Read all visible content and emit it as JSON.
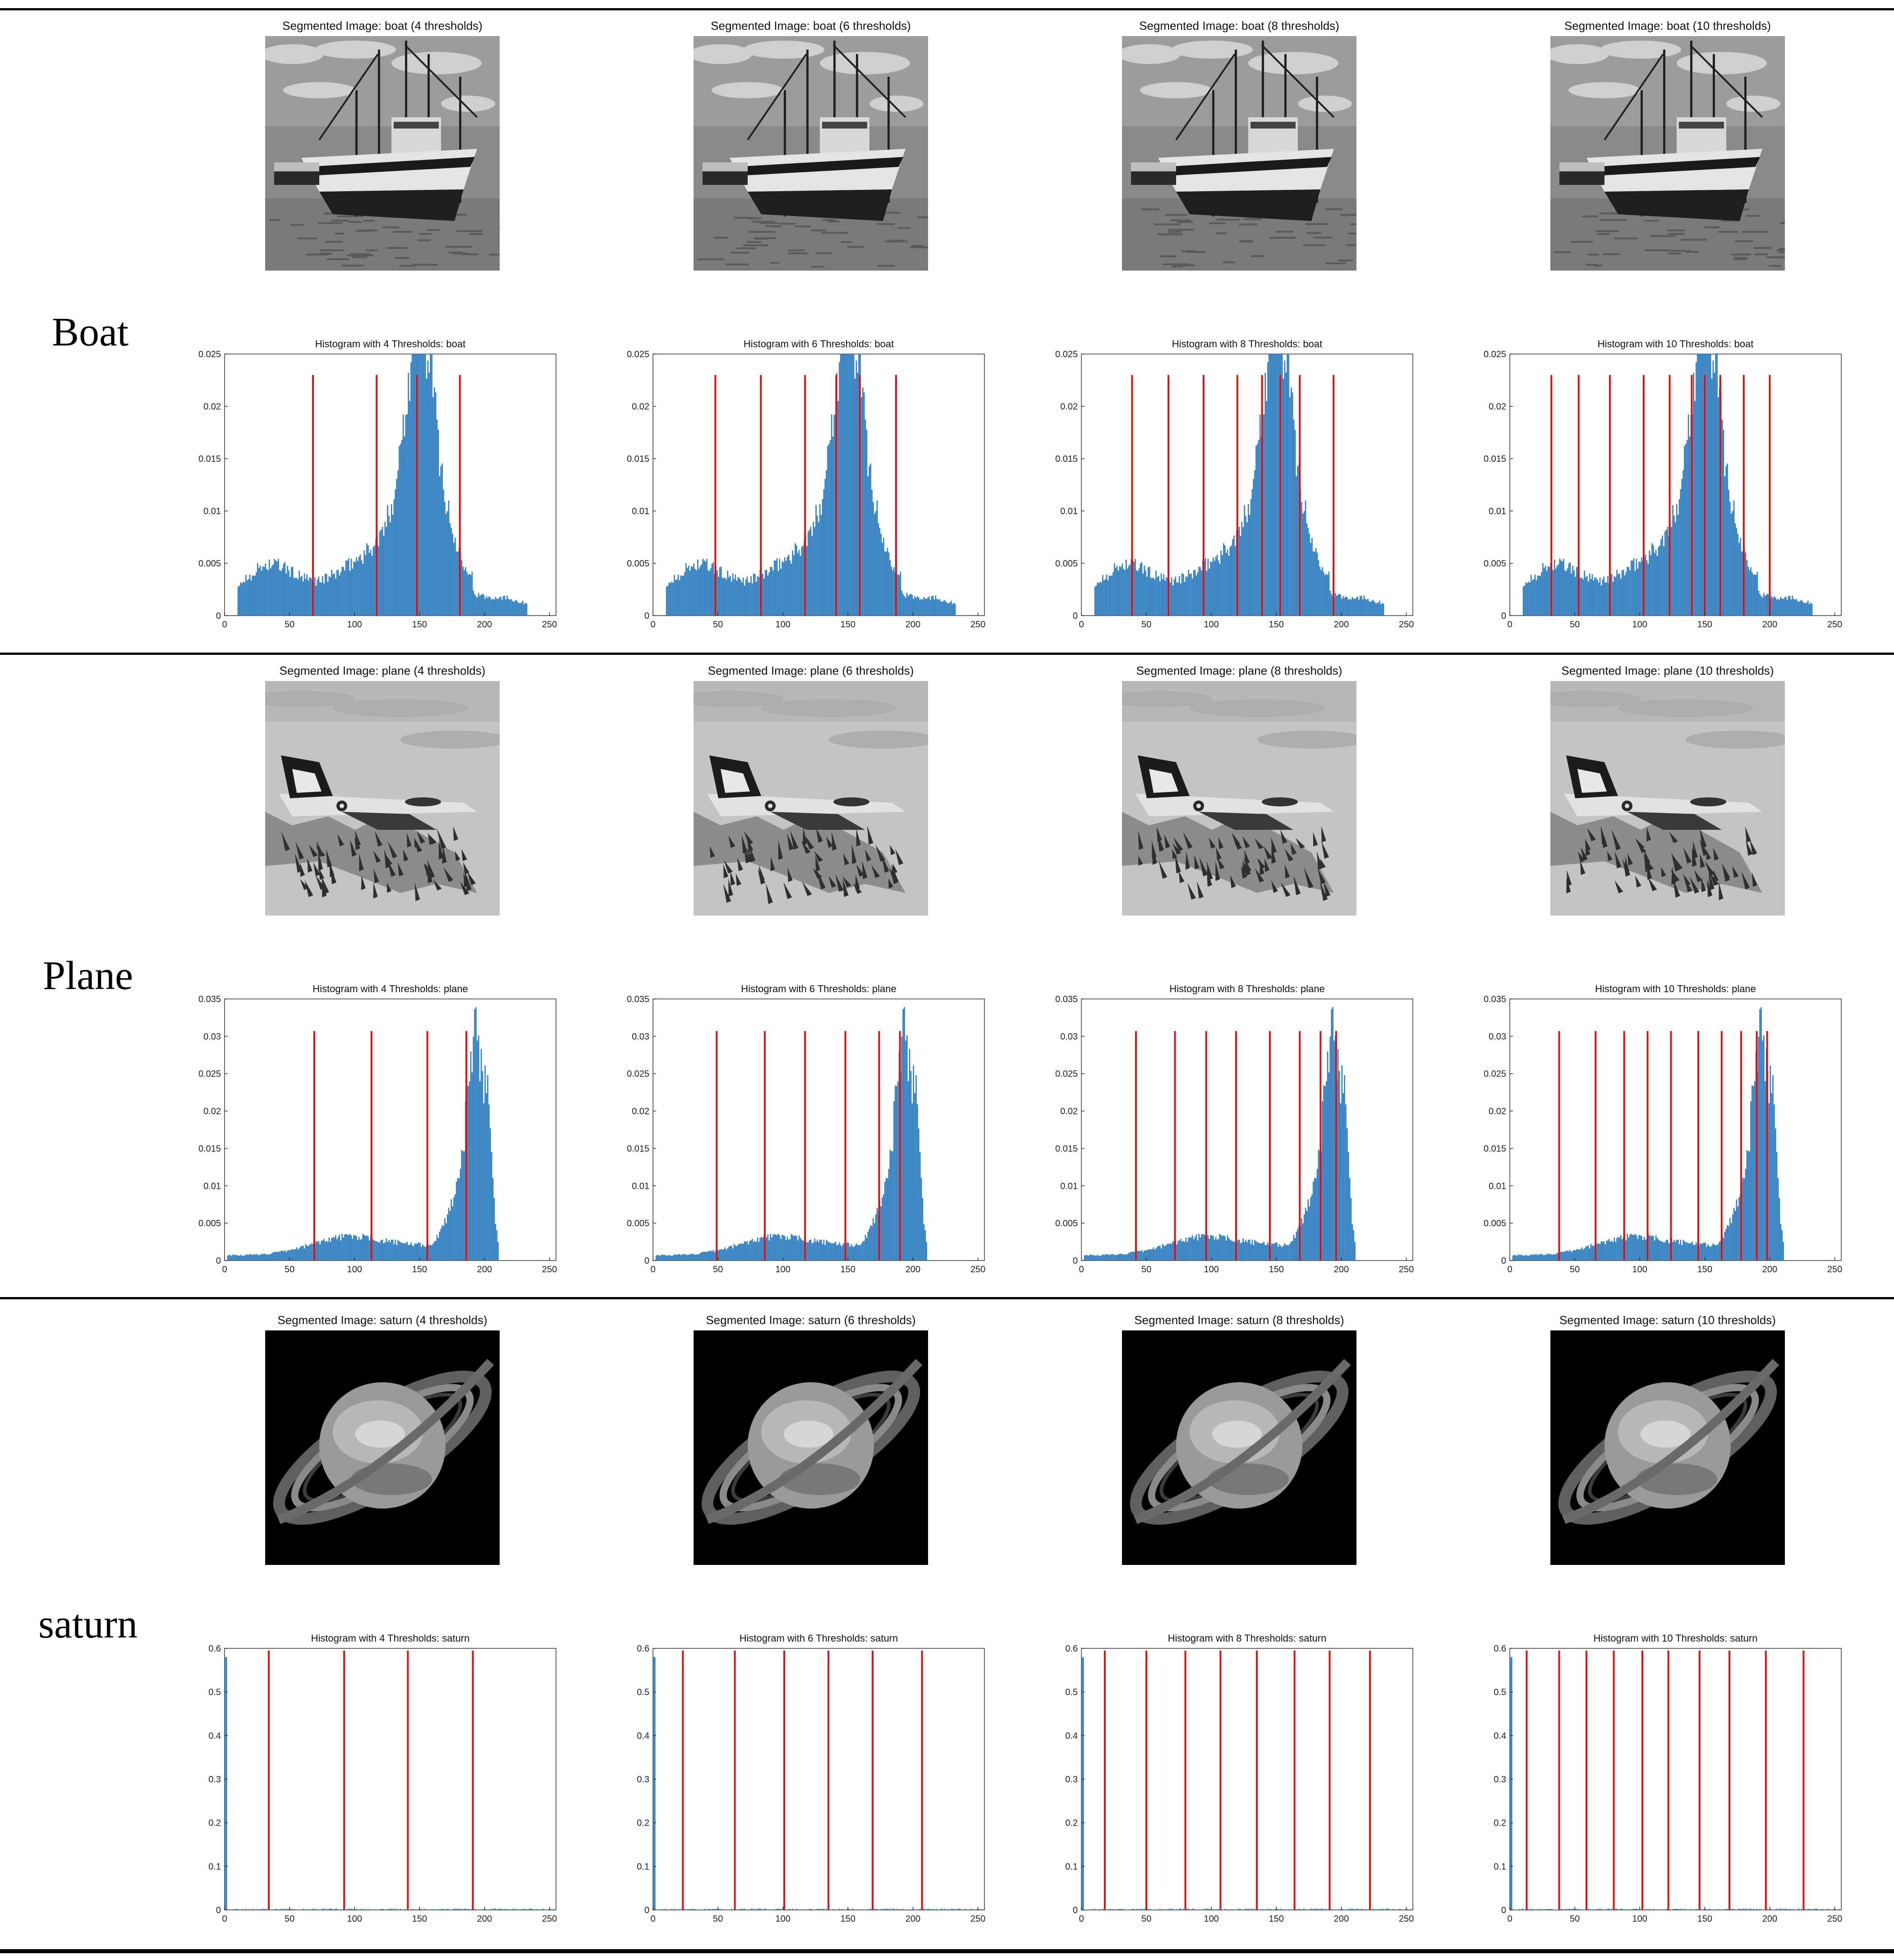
{
  "rows": [
    {
      "label": "Boat",
      "image": "boat",
      "segmented_titles": [
        "Segmented Image: boat (4 thresholds)",
        "Segmented Image: boat (6 thresholds)",
        "Segmented Image: boat (8 thresholds)",
        "Segmented Image: boat (10 thresholds)"
      ]
    },
    {
      "label": "Plane",
      "image": "plane",
      "segmented_titles": [
        "Segmented Image: plane (4 thresholds)",
        "Segmented Image: plane (6 thresholds)",
        "Segmented Image: plane (8 thresholds)",
        "Segmented Image: plane (10 thresholds)"
      ]
    },
    {
      "label": "saturn",
      "image": "saturn",
      "segmented_titles": [
        "Segmented Image: saturn (4 thresholds)",
        "Segmented Image: saturn (6 thresholds)",
        "Segmented Image: saturn (8 thresholds)",
        "Segmented Image: saturn (10 thresholds)"
      ]
    }
  ],
  "colors": {
    "histogram_bars": "#2b7bbf",
    "threshold_lines": "#e01010",
    "axes": "#333333"
  },
  "chart_data": [
    {
      "type": "bar",
      "title": "Histogram with 4 Thresholds: boat",
      "xlim": [
        0,
        255
      ],
      "ylim": [
        0,
        0.025
      ],
      "xticks": [
        0,
        50,
        100,
        150,
        200,
        250
      ],
      "yticks": [
        0,
        0.005,
        0.01,
        0.015,
        0.02,
        0.025
      ],
      "ytick_labels": [
        "0",
        "0.005",
        "0.01",
        "0.015",
        "0.02",
        "0.025"
      ],
      "distribution": "boat",
      "thresholds": [
        68,
        117,
        148,
        181
      ],
      "threshold_height": 0.023
    },
    {
      "type": "bar",
      "title": "Histogram with 6 Thresholds: boat",
      "xlim": [
        0,
        255
      ],
      "ylim": [
        0,
        0.025
      ],
      "xticks": [
        0,
        50,
        100,
        150,
        200,
        250
      ],
      "yticks": [
        0,
        0.005,
        0.01,
        0.015,
        0.02,
        0.025
      ],
      "ytick_labels": [
        "0",
        "0.005",
        "0.01",
        "0.015",
        "0.02",
        "0.025"
      ],
      "distribution": "boat",
      "thresholds": [
        48,
        83,
        117,
        141,
        159,
        187
      ],
      "threshold_height": 0.023
    },
    {
      "type": "bar",
      "title": "Histogram with 8 Thresholds: boat",
      "xlim": [
        0,
        255
      ],
      "ylim": [
        0,
        0.025
      ],
      "xticks": [
        0,
        50,
        100,
        150,
        200,
        250
      ],
      "yticks": [
        0,
        0.005,
        0.01,
        0.015,
        0.02,
        0.025
      ],
      "ytick_labels": [
        "0",
        "0.005",
        "0.01",
        "0.015",
        "0.02",
        "0.025"
      ],
      "distribution": "boat",
      "thresholds": [
        39,
        67,
        94,
        120,
        139,
        153,
        168,
        194
      ],
      "threshold_height": 0.023
    },
    {
      "type": "bar",
      "title": "Histogram with 10 Thresholds: boat",
      "xlim": [
        0,
        255
      ],
      "ylim": [
        0,
        0.025
      ],
      "xticks": [
        0,
        50,
        100,
        150,
        200,
        250
      ],
      "yticks": [
        0,
        0.005,
        0.01,
        0.015,
        0.02,
        0.025
      ],
      "ytick_labels": [
        "0",
        "0.005",
        "0.01",
        "0.015",
        "0.02",
        "0.025"
      ],
      "distribution": "boat",
      "thresholds": [
        32,
        53,
        77,
        103,
        123,
        140,
        150,
        162,
        180,
        200
      ],
      "threshold_height": 0.023
    },
    {
      "type": "bar",
      "title": "Histogram with 4 Thresholds: plane",
      "xlim": [
        0,
        255
      ],
      "ylim": [
        0,
        0.035
      ],
      "xticks": [
        0,
        50,
        100,
        150,
        200,
        250
      ],
      "yticks": [
        0,
        0.005,
        0.01,
        0.015,
        0.02,
        0.025,
        0.03,
        0.035
      ],
      "ytick_labels": [
        "0",
        "0.005",
        "0.01",
        "0.015",
        "0.02",
        "0.025",
        "0.03",
        "0.035"
      ],
      "distribution": "plane",
      "thresholds": [
        69,
        113,
        156,
        186
      ],
      "threshold_height": 0.0307
    },
    {
      "type": "bar",
      "title": "Histogram with 6 Thresholds: plane",
      "xlim": [
        0,
        255
      ],
      "ylim": [
        0,
        0.035
      ],
      "xticks": [
        0,
        50,
        100,
        150,
        200,
        250
      ],
      "yticks": [
        0,
        0.005,
        0.01,
        0.015,
        0.02,
        0.025,
        0.03,
        0.035
      ],
      "ytick_labels": [
        "0",
        "0.005",
        "0.01",
        "0.015",
        "0.02",
        "0.025",
        "0.03",
        "0.035"
      ],
      "distribution": "plane",
      "thresholds": [
        49,
        86,
        117,
        148,
        174,
        190
      ],
      "threshold_height": 0.0307
    },
    {
      "type": "bar",
      "title": "Histogram with 8 Thresholds: plane",
      "xlim": [
        0,
        255
      ],
      "ylim": [
        0,
        0.035
      ],
      "xticks": [
        0,
        50,
        100,
        150,
        200,
        250
      ],
      "yticks": [
        0,
        0.005,
        0.01,
        0.015,
        0.02,
        0.025,
        0.03,
        0.035
      ],
      "ytick_labels": [
        "0",
        "0.005",
        "0.01",
        "0.015",
        "0.02",
        "0.025",
        "0.03",
        "0.035"
      ],
      "distribution": "plane",
      "thresholds": [
        42,
        72,
        96,
        119,
        145,
        168,
        184,
        196
      ],
      "threshold_height": 0.0307
    },
    {
      "type": "bar",
      "title": "Histogram with 10 Thresholds: plane",
      "xlim": [
        0,
        255
      ],
      "ylim": [
        0,
        0.035
      ],
      "xticks": [
        0,
        50,
        100,
        150,
        200,
        250
      ],
      "yticks": [
        0,
        0.005,
        0.01,
        0.015,
        0.02,
        0.025,
        0.03,
        0.035
      ],
      "ytick_labels": [
        "0",
        "0.005",
        "0.01",
        "0.015",
        "0.02",
        "0.025",
        "0.03",
        "0.035"
      ],
      "distribution": "plane",
      "thresholds": [
        38,
        66,
        88,
        106,
        124,
        145,
        163,
        178,
        190,
        198
      ],
      "threshold_height": 0.0307
    },
    {
      "type": "bar",
      "title": "Histogram with 4 Thresholds: saturn",
      "xlim": [
        0,
        255
      ],
      "ylim": [
        0,
        0.6
      ],
      "xticks": [
        0,
        50,
        100,
        150,
        200,
        250
      ],
      "yticks": [
        0,
        0.1,
        0.2,
        0.3,
        0.4,
        0.5,
        0.6
      ],
      "ytick_labels": [
        "0",
        "0.1",
        "0.2",
        "0.3",
        "0.4",
        "0.5",
        "0.6"
      ],
      "distribution": "saturn",
      "thresholds": [
        34,
        92,
        141,
        191
      ],
      "threshold_height": 0.595
    },
    {
      "type": "bar",
      "title": "Histogram with 6 Thresholds: saturn",
      "xlim": [
        0,
        255
      ],
      "ylim": [
        0,
        0.6
      ],
      "xticks": [
        0,
        50,
        100,
        150,
        200,
        250
      ],
      "yticks": [
        0,
        0.1,
        0.2,
        0.3,
        0.4,
        0.5,
        0.6
      ],
      "ytick_labels": [
        "0",
        "0.1",
        "0.2",
        "0.3",
        "0.4",
        "0.5",
        "0.6"
      ],
      "distribution": "saturn",
      "thresholds": [
        23,
        63,
        101,
        135,
        169,
        207
      ],
      "threshold_height": 0.595
    },
    {
      "type": "bar",
      "title": "Histogram with 8 Thresholds: saturn",
      "xlim": [
        0,
        255
      ],
      "ylim": [
        0,
        0.6
      ],
      "xticks": [
        0,
        50,
        100,
        150,
        200,
        250
      ],
      "yticks": [
        0,
        0.1,
        0.2,
        0.3,
        0.4,
        0.5,
        0.6
      ],
      "ytick_labels": [
        "0",
        "0.1",
        "0.2",
        "0.3",
        "0.4",
        "0.5",
        "0.6"
      ],
      "distribution": "saturn",
      "thresholds": [
        18,
        50,
        80,
        107,
        135,
        164,
        191,
        222
      ],
      "threshold_height": 0.595
    },
    {
      "type": "bar",
      "title": "Histogram with 10 Thresholds: saturn",
      "xlim": [
        0,
        255
      ],
      "ylim": [
        0,
        0.6
      ],
      "xticks": [
        0,
        50,
        100,
        150,
        200,
        250
      ],
      "yticks": [
        0,
        0.1,
        0.2,
        0.3,
        0.4,
        0.5,
        0.6
      ],
      "ytick_labels": [
        "0",
        "0.1",
        "0.2",
        "0.3",
        "0.4",
        "0.5",
        "0.6"
      ],
      "distribution": "saturn",
      "thresholds": [
        13,
        38,
        59,
        80,
        102,
        122,
        146,
        169,
        197,
        226
      ],
      "threshold_height": 0.595
    }
  ]
}
